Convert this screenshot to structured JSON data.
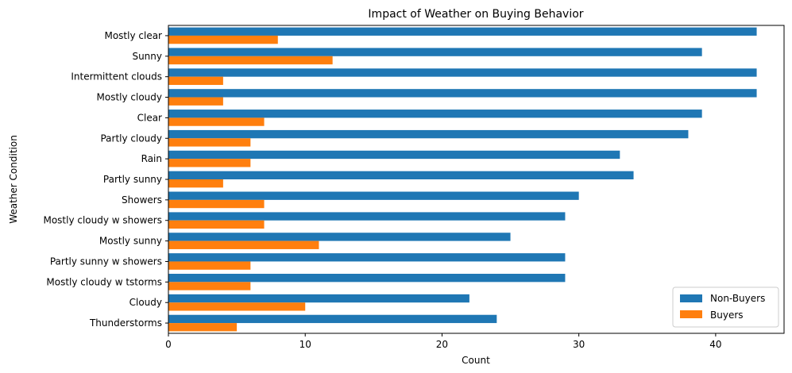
{
  "chart_data": {
    "type": "bar",
    "orientation": "horizontal",
    "title": "Impact of Weather on Buying Behavior",
    "xlabel": "Count",
    "ylabel": "Weather Condition",
    "xlim": [
      0,
      45
    ],
    "xticks": [
      0,
      10,
      20,
      30,
      40
    ],
    "categories": [
      "Mostly clear",
      "Sunny",
      "Intermittent clouds",
      "Mostly cloudy",
      "Clear",
      "Partly cloudy",
      "Rain",
      "Partly sunny",
      "Showers",
      "Mostly cloudy w showers",
      "Mostly sunny",
      "Partly sunny w showers",
      "Mostly cloudy w tstorms",
      "Cloudy",
      "Thunderstorms"
    ],
    "series": [
      {
        "name": "Non-Buyers",
        "color": "#1f77b4",
        "values": [
          43,
          39,
          43,
          43,
          39,
          38,
          33,
          34,
          30,
          29,
          25,
          29,
          29,
          22,
          24
        ]
      },
      {
        "name": "Buyers",
        "color": "#ff7f0e",
        "values": [
          8,
          12,
          4,
          4,
          7,
          6,
          6,
          4,
          7,
          7,
          11,
          6,
          6,
          10,
          5
        ]
      }
    ],
    "legend_position": "lower-right",
    "grid": false
  }
}
